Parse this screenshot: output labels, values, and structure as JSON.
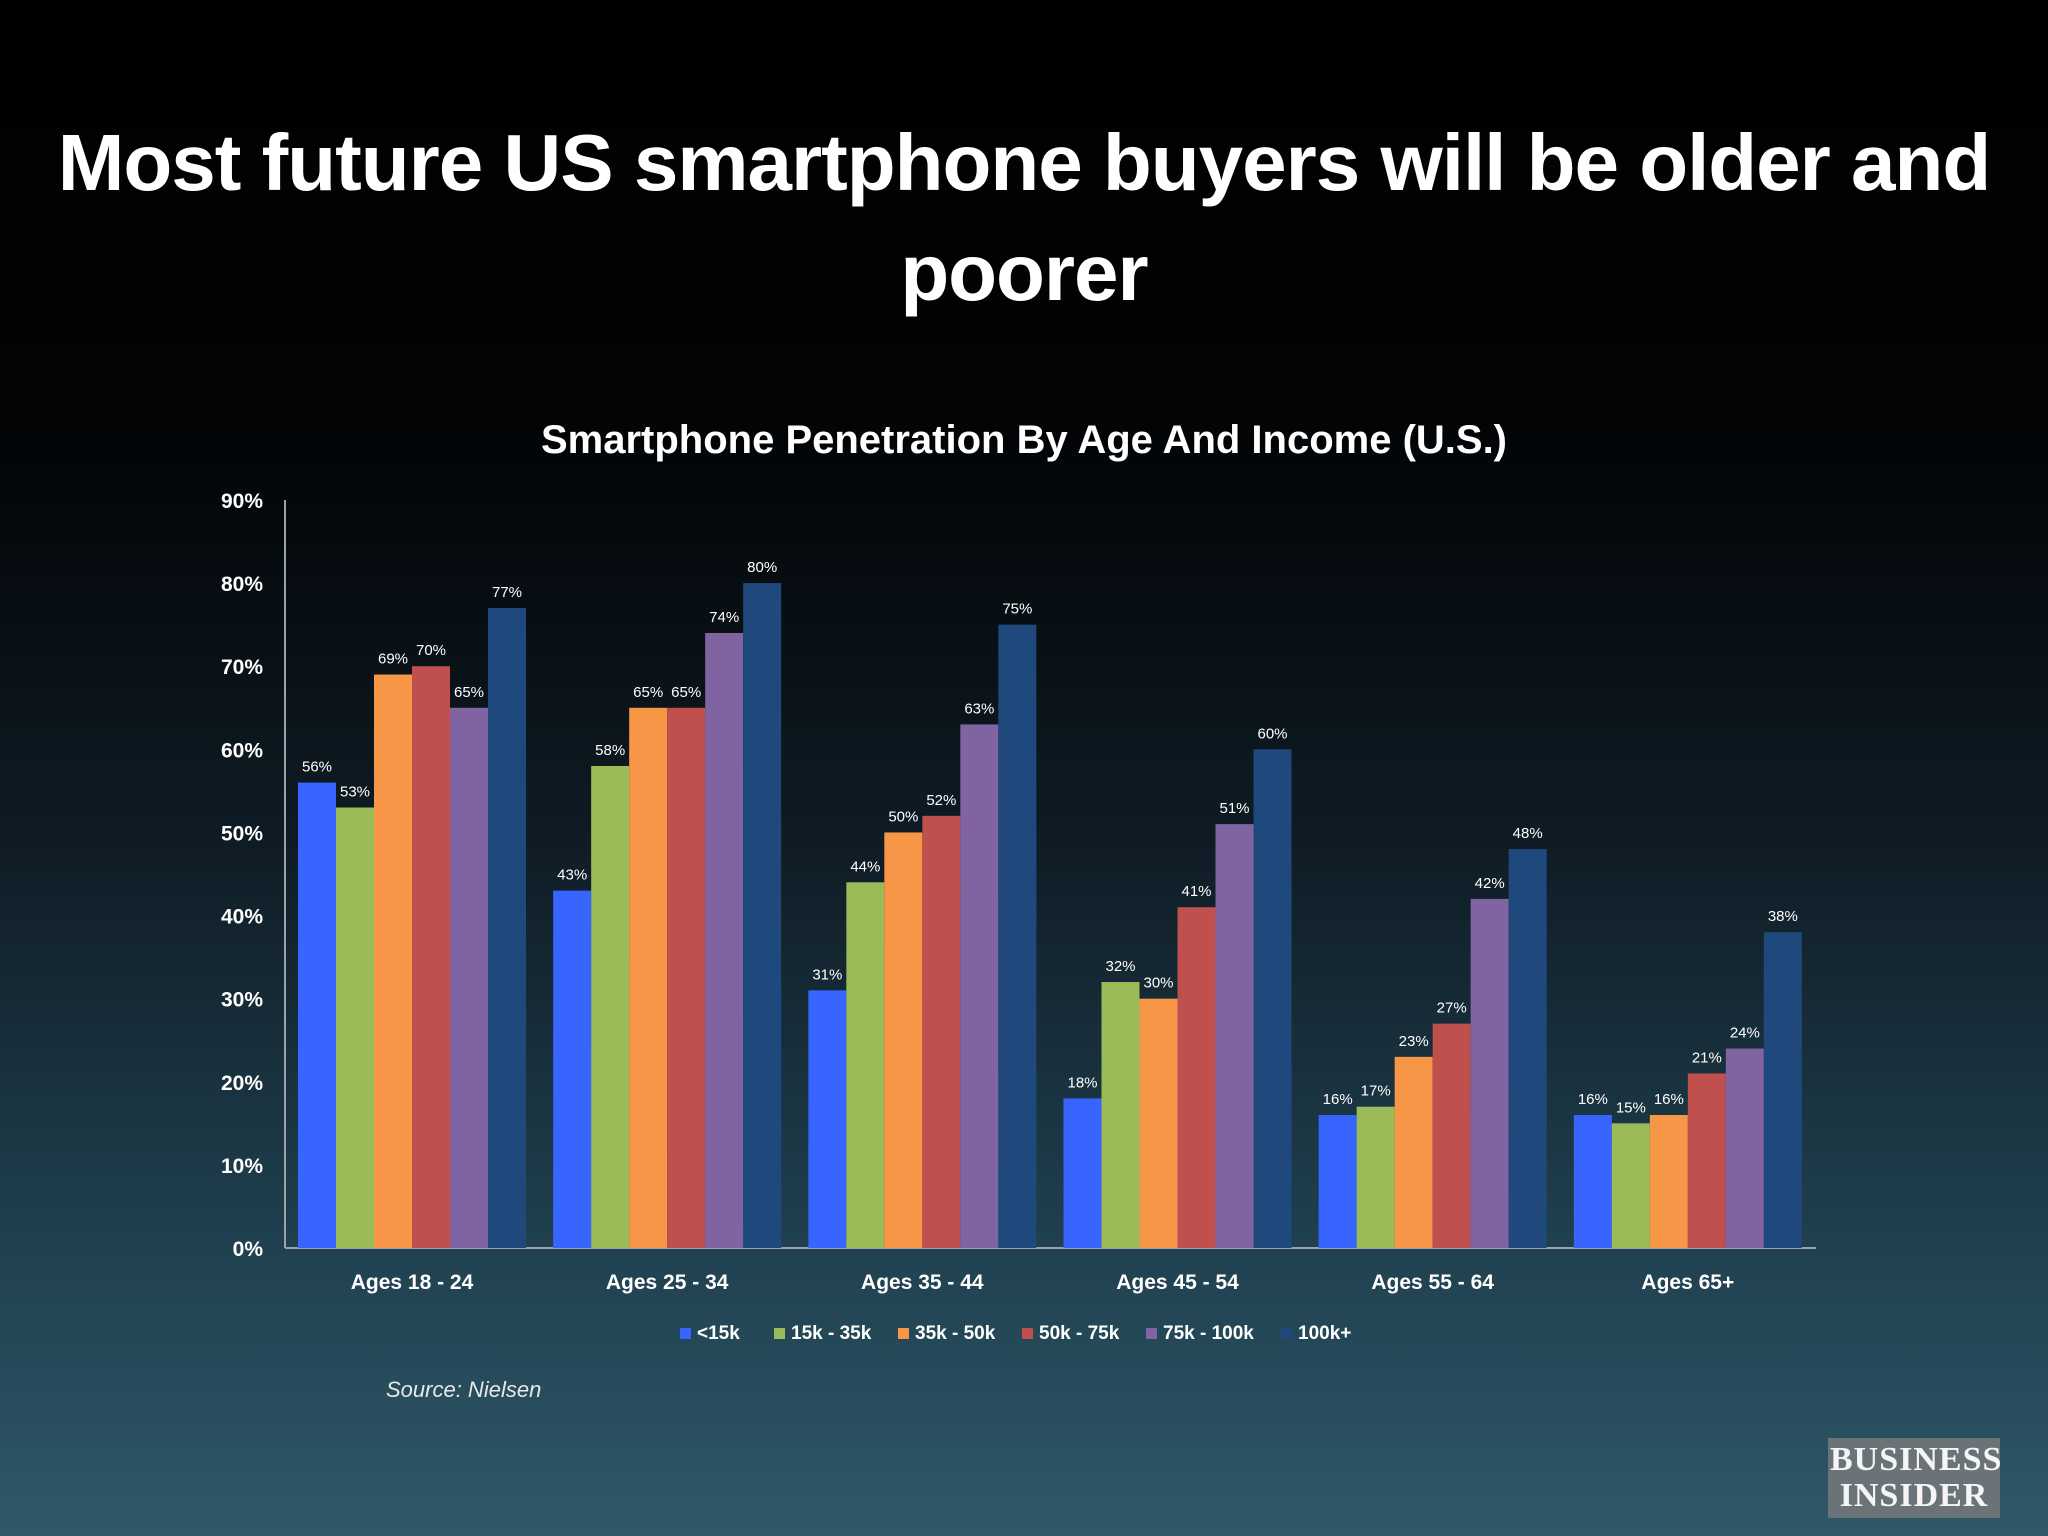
{
  "slide_title": "Most future US smartphone buyers will be older and poorer",
  "source": "Source: Nielsen",
  "brand": {
    "line1": "BUSINESS",
    "line2": "INSIDER"
  },
  "chart_data": {
    "type": "bar",
    "title": "Smartphone Penetration By Age And Income (U.S.)",
    "xlabel": "",
    "ylabel": "",
    "ylim": [
      0,
      90
    ],
    "yticks": [
      "0%",
      "10%",
      "20%",
      "30%",
      "40%",
      "50%",
      "60%",
      "70%",
      "80%",
      "90%"
    ],
    "grid": false,
    "legend_position": "bottom",
    "categories": [
      "Ages 18 - 24",
      "Ages 25 - 34",
      "Ages 35 - 44",
      "Ages 45 - 54",
      "Ages 55 - 64",
      "Ages 65+"
    ],
    "series": [
      {
        "name": "<15k",
        "color": "#3865fd",
        "values": [
          56,
          43,
          31,
          18,
          16,
          16
        ]
      },
      {
        "name": "15k - 35k",
        "color": "#9bbb59",
        "values": [
          53,
          58,
          44,
          32,
          17,
          15
        ]
      },
      {
        "name": "35k - 50k",
        "color": "#f79646",
        "values": [
          69,
          65,
          50,
          30,
          23,
          16
        ]
      },
      {
        "name": "50k - 75k",
        "color": "#c0504d",
        "values": [
          70,
          65,
          52,
          41,
          27,
          21
        ]
      },
      {
        "name": "75k - 100k",
        "color": "#8064a2",
        "values": [
          65,
          74,
          63,
          51,
          42,
          24
        ]
      },
      {
        "name": "100k+",
        "color": "#1f497d",
        "values": [
          77,
          80,
          75,
          60,
          48,
          38
        ]
      }
    ]
  }
}
